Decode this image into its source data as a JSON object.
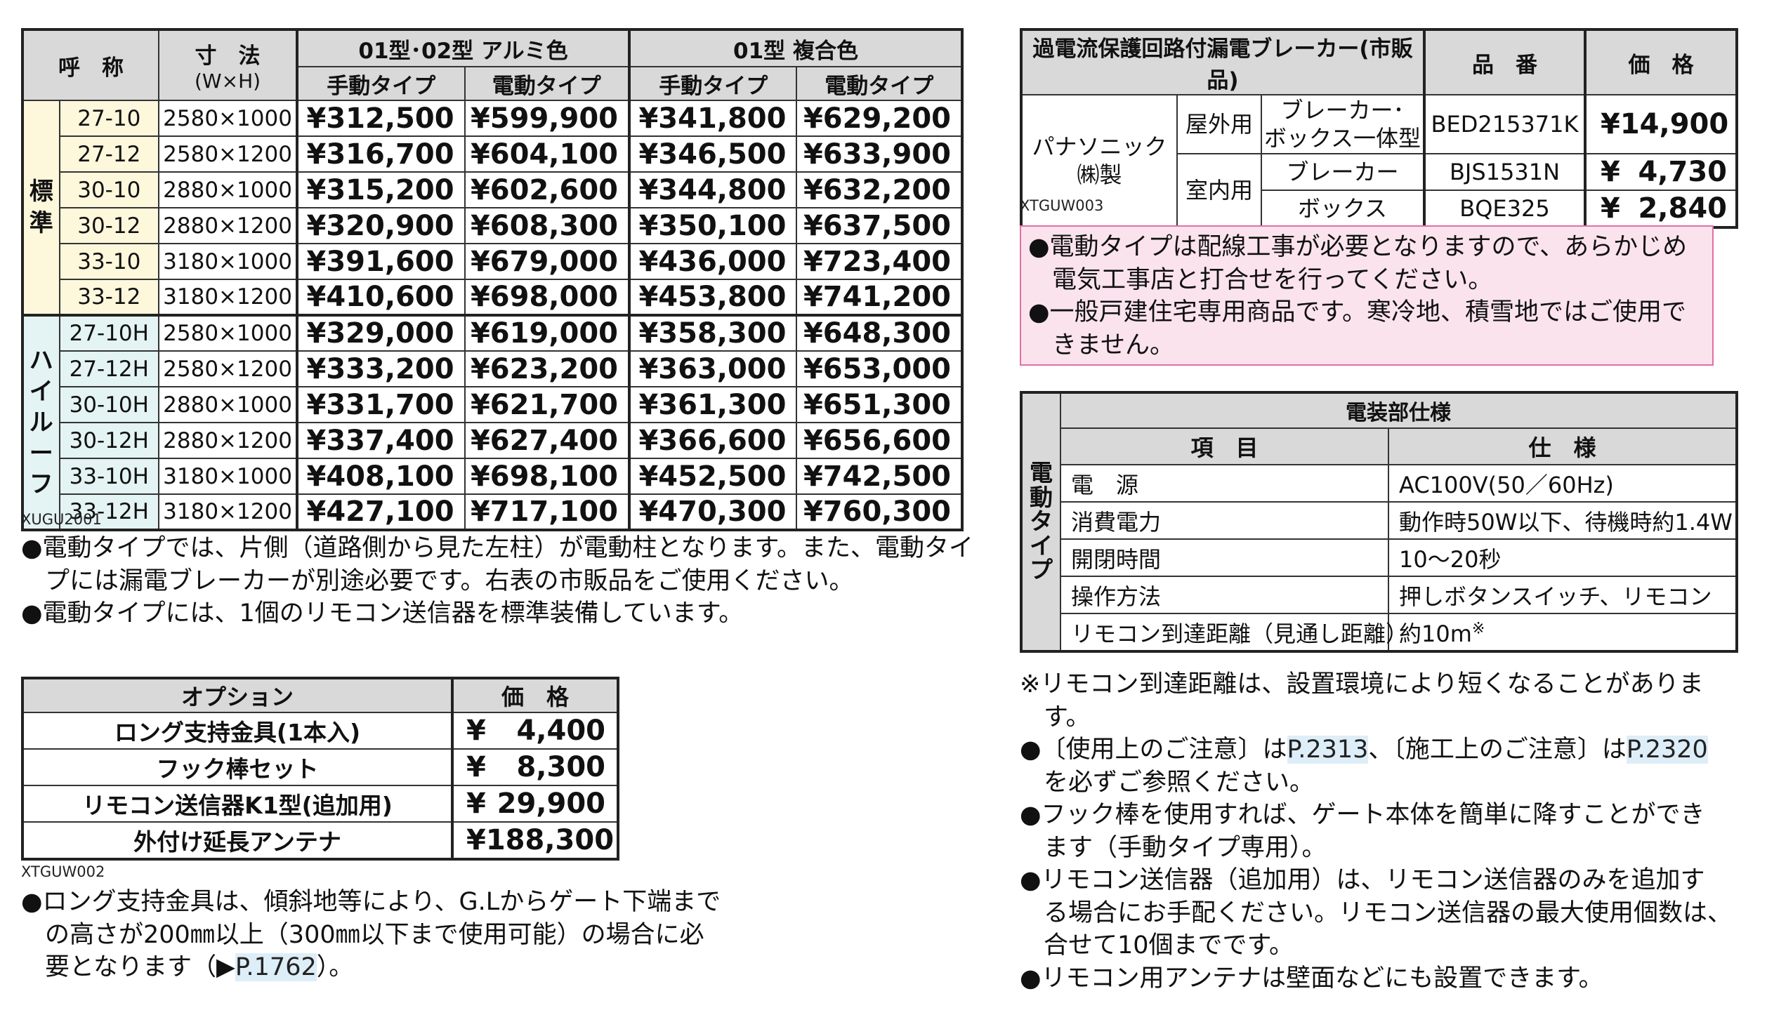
{
  "main_table": {
    "header": {
      "name": "呼　称",
      "size": "寸　法",
      "size_sub": "(W×H)",
      "group_a": "01型･02型 アルミ色",
      "group_b": "01型 複合色",
      "manual": "手動タイプ",
      "electric": "電動タイプ"
    },
    "groups": [
      {
        "label": [
          "標",
          "準"
        ],
        "rows": [
          {
            "code": "27-10",
            "dim": "2580×1000",
            "prices": [
              "¥312,500",
              "¥599,900",
              "¥341,800",
              "¥629,200"
            ]
          },
          {
            "code": "27-12",
            "dim": "2580×1200",
            "prices": [
              "¥316,700",
              "¥604,100",
              "¥346,500",
              "¥633,900"
            ]
          },
          {
            "code": "30-10",
            "dim": "2880×1000",
            "prices": [
              "¥315,200",
              "¥602,600",
              "¥344,800",
              "¥632,200"
            ]
          },
          {
            "code": "30-12",
            "dim": "2880×1200",
            "prices": [
              "¥320,900",
              "¥608,300",
              "¥350,100",
              "¥637,500"
            ]
          },
          {
            "code": "33-10",
            "dim": "3180×1000",
            "prices": [
              "¥391,600",
              "¥679,000",
              "¥436,000",
              "¥723,400"
            ]
          },
          {
            "code": "33-12",
            "dim": "3180×1200",
            "prices": [
              "¥410,600",
              "¥698,000",
              "¥453,800",
              "¥741,200"
            ]
          }
        ]
      },
      {
        "label": [
          "ハ",
          "イ",
          "ル",
          "ー",
          "フ"
        ],
        "rows": [
          {
            "code": "27-10H",
            "dim": "2580×1000",
            "prices": [
              "¥329,000",
              "¥619,000",
              "¥358,300",
              "¥648,300"
            ]
          },
          {
            "code": "27-12H",
            "dim": "2580×1200",
            "prices": [
              "¥333,200",
              "¥623,200",
              "¥363,000",
              "¥653,000"
            ]
          },
          {
            "code": "30-10H",
            "dim": "2880×1000",
            "prices": [
              "¥331,700",
              "¥621,700",
              "¥361,300",
              "¥651,300"
            ]
          },
          {
            "code": "30-12H",
            "dim": "2880×1200",
            "prices": [
              "¥337,400",
              "¥627,400",
              "¥366,600",
              "¥656,600"
            ]
          },
          {
            "code": "33-10H",
            "dim": "3180×1000",
            "prices": [
              "¥408,100",
              "¥698,100",
              "¥452,500",
              "¥742,500"
            ]
          },
          {
            "code": "33-12H",
            "dim": "3180×1200",
            "prices": [
              "¥427,100",
              "¥717,100",
              "¥470,300",
              "¥760,300"
            ]
          }
        ]
      }
    ],
    "code": "XUGU2001"
  },
  "main_notes": [
    "●電動タイプでは、片側（道路側から見た左柱）が電動柱となります。また、電動タイ",
    "プには漏電ブレーカーが別途必要です。右表の市販品をご使用ください。",
    "●電動タイプには、1個のリモコン送信器を標準装備しています。"
  ],
  "option_table": {
    "header_name": "オプション",
    "header_price": "価　格",
    "rows": [
      {
        "name": "ロング支持金具(1本入)",
        "yen": "¥",
        "price": "4,400"
      },
      {
        "name": "フック棒セット",
        "yen": "¥",
        "price": "8,300"
      },
      {
        "name": "リモコン送信器K1型(追加用)",
        "yen": "¥",
        "price": "29,900"
      },
      {
        "name": "外付け延長アンテナ",
        "yen": "¥",
        "price": "188,300"
      }
    ],
    "code": "XTGUW002"
  },
  "option_note": {
    "line1": "●ロング支持金具は、傾斜地等により、G.Lからゲート下端まで",
    "line2": "の高さが200㎜以上（300㎜以下まで使用可能）の場合に必",
    "line3_pre": "要となります（",
    "arrow": "▶",
    "link": "P.1762",
    "line3_post": "）。"
  },
  "breaker_table": {
    "header_name": "過電流保護回路付漏電ブレーカー(市販品)",
    "header_part": "品　番",
    "header_price": "価　格",
    "maker_line1": "パナソニック",
    "maker_line2": "㈱製",
    "outdoor": "屋外用",
    "indoor": "室内用",
    "rows": [
      {
        "type_line1": "ブレーカー･",
        "type_line2": "ボックス一体型",
        "part": "BED215371K",
        "yen": "¥",
        "price": "14,900"
      },
      {
        "type_line1": "ブレーカー",
        "part": "BJS1531N",
        "yen": "¥",
        "price": "4,730"
      },
      {
        "type_line1": "ボックス",
        "part": "BQE325",
        "yen": "¥",
        "price": "2,840"
      }
    ],
    "code": "XTGUW003"
  },
  "pink_notes": [
    "●電動タイプは配線工事が必要となりますので、あらかじめ",
    "電気工事店と打合せを行ってください。",
    "●一般戸建住宅専用商品です。寒冷地、積雪地ではご使用で",
    "きません。"
  ],
  "spec_table": {
    "title": "電装部仕様",
    "side_label": [
      "電",
      "動",
      "タ",
      "イ",
      "プ"
    ],
    "col_item": "項　目",
    "col_spec": "仕　様",
    "rows": [
      {
        "item": "電　源",
        "spec": "AC100V(50／60Hz)"
      },
      {
        "item": "消費電力",
        "spec": "動作時50W以下、待機時約1.4W"
      },
      {
        "item": "開閉時間",
        "spec": "10～20秒"
      },
      {
        "item": "操作方法",
        "spec": "押しボタンスイッチ、リモコン"
      },
      {
        "item": "リモコン到達距離（見通し距離）",
        "spec": "約10m",
        "mark": "※"
      }
    ]
  },
  "right_notes": {
    "n1a": "※リモコン到達距離は、設置環境により短くなることがありま",
    "n1b": "す。",
    "n2_pre": "●〔使用上のご注意〕は",
    "n2_link1": "P.2313",
    "n2_mid": "、〔施工上のご注意〕は",
    "n2_link2": "P.2320",
    "n2b": "を必ずご参照ください。",
    "n3a": "●フック棒を使用すれば、ゲート本体を簡単に降すことができ",
    "n3b": "ます（手動タイプ専用）。",
    "n4a": "●リモコン送信器（追加用）は、リモコン送信器のみを追加す",
    "n4b": "る場合にお手配ください。リモコン送信器の最大使用個数は、",
    "n4c": "合せて10個までです。",
    "n5": "●リモコン用アンテナは壁面などにも設置できます。"
  }
}
